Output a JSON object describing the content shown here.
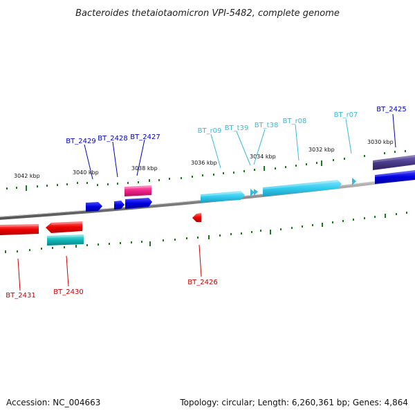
{
  "title": "Bacteroides thetaiotaomicron VPI-5482, complete genome",
  "footer": {
    "accession": "Accession: NC_004663",
    "topology": "Topology: circular; Length: 6,260,361 bp; Genes: 4,864"
  },
  "kbp_labels": {
    "k3042": "3042 kbp",
    "k3040": "3040 kbp",
    "k3038": "3038 kbp",
    "k3036": "3036 kbp",
    "k3034": "3034 kbp",
    "k3032": "3032 kbp",
    "k3030": "3030 kbp"
  },
  "genes": {
    "bt2425": "BT_2425",
    "bt2426": "BT_2426",
    "bt2427": "BT_2427",
    "bt2428": "BT_2428",
    "bt2429": "BT_2429",
    "bt2430": "BT_2430",
    "bt2431": "BT_2431",
    "btr07": "BT_r07",
    "btr08": "BT_r08",
    "btt38": "BT_t38",
    "btt39": "BT_t39",
    "btr09": "BT_r09"
  },
  "colors": {
    "backbone": "#8c8c8c",
    "tick": "#1a7a1a",
    "cds_forward": "#0000dd",
    "cds_reverse": "#ee0000",
    "pink_feature": "#ee2288",
    "teal_feature": "#11b8b8",
    "rna_feature": "#33ccee",
    "purple_feature": "#4a3a8a",
    "label_blue": "#0000bb",
    "label_red": "#cc0000",
    "label_cyan": "#33bbdd"
  }
}
